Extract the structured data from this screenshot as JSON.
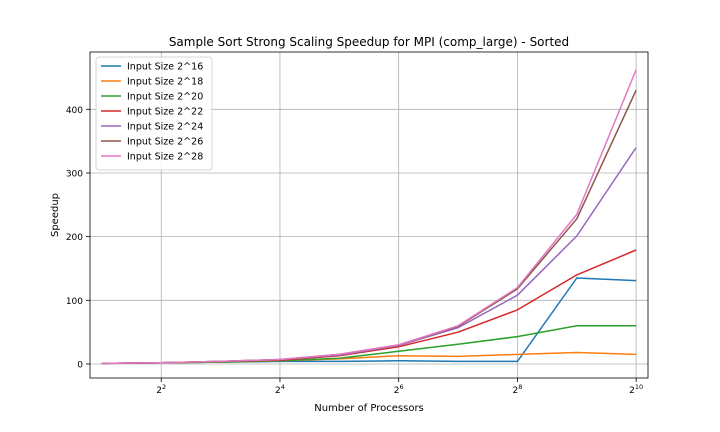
{
  "chart_data": {
    "type": "line",
    "title": "Sample Sort Strong Scaling Speedup for MPI (comp_large) - Sorted",
    "xlabel": "Number of Processors",
    "ylabel": "Speedup",
    "x_scale": "log2",
    "x": [
      2,
      4,
      8,
      16,
      32,
      64,
      128,
      256,
      512,
      1024
    ],
    "x_ticks": [
      4,
      16,
      64,
      256,
      1024
    ],
    "x_tick_labels": [
      {
        "base": "2",
        "exp": "2"
      },
      {
        "base": "2",
        "exp": "4"
      },
      {
        "base": "2",
        "exp": "6"
      },
      {
        "base": "2",
        "exp": "8"
      },
      {
        "base": "2",
        "exp": "10"
      }
    ],
    "ylim": [
      -22,
      490
    ],
    "y_ticks": [
      0,
      100,
      200,
      300,
      400
    ],
    "grid": true,
    "legend_position": "top-left",
    "series": [
      {
        "name": "Input Size 2^16",
        "color": "#1f77b4",
        "values": [
          1,
          2,
          3,
          4,
          4,
          5,
          4,
          4,
          135,
          131
        ]
      },
      {
        "name": "Input Size 2^18",
        "color": "#ff7f0e",
        "values": [
          1,
          2,
          3,
          5,
          8,
          13,
          12,
          15,
          18,
          15
        ]
      },
      {
        "name": "Input Size 2^20",
        "color": "#2ca02c",
        "values": [
          1,
          2,
          3,
          5,
          9,
          20,
          31,
          43,
          60,
          60
        ]
      },
      {
        "name": "Input Size 2^22",
        "color": "#d62728",
        "values": [
          1,
          2,
          4,
          6,
          13,
          27,
          50,
          85,
          140,
          179
        ]
      },
      {
        "name": "Input Size 2^24",
        "color": "#9467bd",
        "values": [
          1,
          2,
          4,
          7,
          14,
          29,
          57,
          108,
          201,
          340
        ]
      },
      {
        "name": "Input Size 2^26",
        "color": "#8c564b",
        "values": [
          1,
          2,
          4,
          7,
          15,
          30,
          59,
          118,
          228,
          430
        ]
      },
      {
        "name": "Input Size 2^28",
        "color": "#e377c2",
        "values": [
          1,
          2,
          4,
          7,
          15,
          30,
          60,
          120,
          235,
          462
        ]
      }
    ]
  }
}
